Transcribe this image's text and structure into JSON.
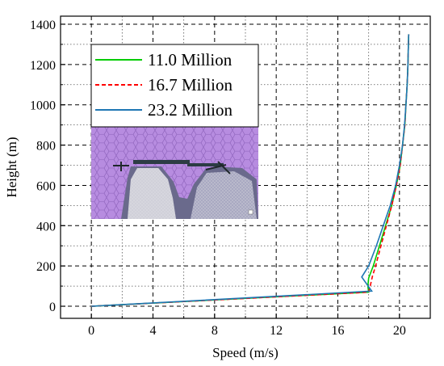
{
  "chart_data": {
    "type": "line",
    "xlabel": "Speed (m/s)",
    "ylabel": "Height (m)",
    "xlim": [
      -2,
      22
    ],
    "ylim": [
      -60,
      1440
    ],
    "x_ticks": [
      0,
      4,
      8,
      12,
      16,
      20
    ],
    "y_ticks": [
      0,
      200,
      400,
      600,
      800,
      1000,
      1200,
      1400
    ],
    "x_tick_labels": [
      "0",
      "4",
      "8",
      "12",
      "16",
      "20"
    ],
    "y_tick_labels": [
      "0",
      "200",
      "400",
      "600",
      "800",
      "1000",
      "1200",
      "1400"
    ],
    "grid": true,
    "grid_style": "dashed",
    "legend_position": "upper-left",
    "inset_image": "mesh-domain-view",
    "series": [
      {
        "name": "11.0 Million",
        "color": "#00cc00",
        "style": "solid",
        "points": [
          [
            0,
            0
          ],
          [
            18.0,
            70
          ],
          [
            17.95,
            100
          ],
          [
            18.0,
            140
          ],
          [
            18.3,
            200
          ],
          [
            18.7,
            300
          ],
          [
            19.1,
            400
          ],
          [
            19.5,
            500
          ],
          [
            19.8,
            600
          ],
          [
            20.05,
            700
          ],
          [
            20.2,
            800
          ],
          [
            20.35,
            900
          ],
          [
            20.42,
            1000
          ],
          [
            20.5,
            1100
          ],
          [
            20.55,
            1200
          ],
          [
            20.58,
            1300
          ],
          [
            20.6,
            1350
          ]
        ]
      },
      {
        "name": "16.7 Million",
        "color": "#ff0000",
        "style": "dashed",
        "points": [
          [
            0,
            0
          ],
          [
            18.0,
            70
          ],
          [
            18.1,
            100
          ],
          [
            18.25,
            150
          ],
          [
            18.45,
            200
          ],
          [
            18.8,
            300
          ],
          [
            19.15,
            400
          ],
          [
            19.5,
            500
          ],
          [
            19.8,
            600
          ],
          [
            20.05,
            700
          ],
          [
            20.2,
            800
          ],
          [
            20.35,
            900
          ],
          [
            20.42,
            1000
          ],
          [
            20.5,
            1100
          ],
          [
            20.55,
            1200
          ],
          [
            20.58,
            1300
          ],
          [
            20.6,
            1350
          ]
        ]
      },
      {
        "name": "23.2 Million",
        "color": "#1f77b4",
        "style": "solid",
        "points": [
          [
            0,
            0
          ],
          [
            18.2,
            75
          ],
          [
            17.55,
            145
          ],
          [
            18.0,
            200
          ],
          [
            18.5,
            300
          ],
          [
            18.95,
            400
          ],
          [
            19.4,
            500
          ],
          [
            19.75,
            600
          ],
          [
            20.0,
            700
          ],
          [
            20.2,
            800
          ],
          [
            20.33,
            900
          ],
          [
            20.42,
            1000
          ],
          [
            20.5,
            1100
          ],
          [
            20.55,
            1200
          ],
          [
            20.58,
            1300
          ],
          [
            20.6,
            1350
          ]
        ]
      }
    ]
  }
}
